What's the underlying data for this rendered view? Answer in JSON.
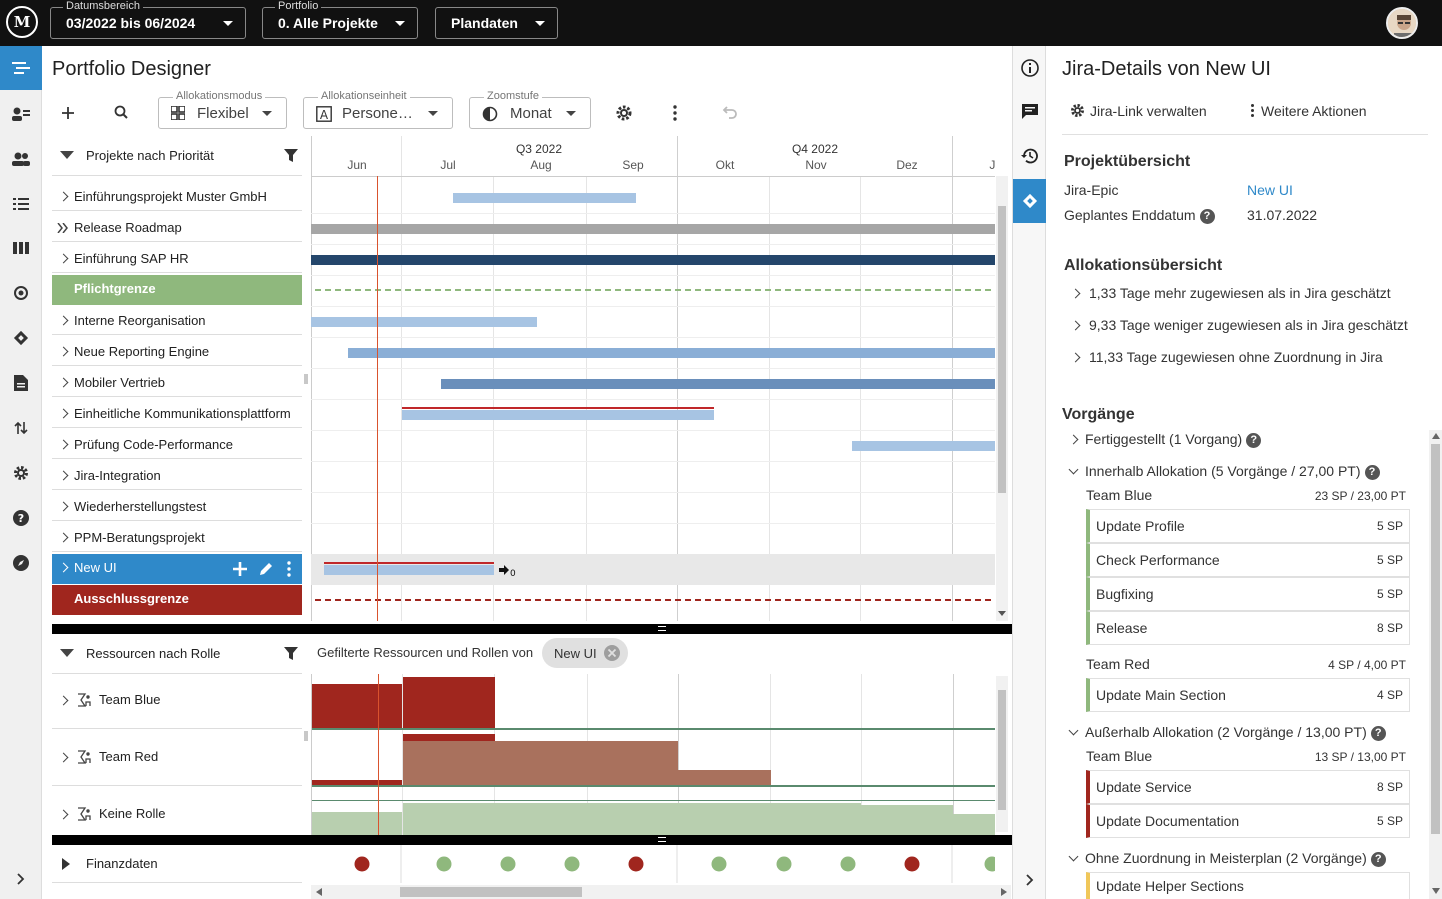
{
  "topbar": {
    "date_label": "Datumsbereich",
    "date_value": "03/2022 bis 06/2024",
    "portfolio_label": "Portfolio",
    "portfolio_value": "0. Alle Projekte",
    "plan_value": "Plandaten"
  },
  "page": {
    "title": "Portfolio Designer"
  },
  "toolbar": {
    "mode_label": "Allokationsmodus",
    "mode_value": "Flexibel",
    "unit_label": "Allokationseinheit",
    "unit_value": "Persone…",
    "zoom_label": "Zoomstufe",
    "zoom_value": "Monat"
  },
  "projects": {
    "header": "Projekte nach Priorität",
    "rows": [
      {
        "label": "Einführungsprojekt Muster GmbH"
      },
      {
        "label": "Release Roadmap"
      },
      {
        "label": "Einführung SAP HR"
      },
      {
        "label": "Pflichtgrenze"
      },
      {
        "label": "Interne Reorganisation"
      },
      {
        "label": "Neue Reporting Engine"
      },
      {
        "label": "Mobiler Vertrieb"
      },
      {
        "label": "Einheitliche Kommunikationsplattform"
      },
      {
        "label": "Prüfung Code-Performance"
      },
      {
        "label": "Jira-Integration"
      },
      {
        "label": "Wiederherstellungstest"
      },
      {
        "label": "PPM-Beratungsprojekt"
      },
      {
        "label": "New UI"
      },
      {
        "label": "Ausschlussgrenze"
      }
    ],
    "newui_counter": "0"
  },
  "timeline": {
    "quarters": [
      "Q3 2022",
      "Q4 2022"
    ],
    "months": [
      "Jun",
      "Jul",
      "Aug",
      "Sep",
      "Okt",
      "Nov",
      "Dez",
      "Jan"
    ]
  },
  "resources": {
    "header": "Ressourcen nach Rolle",
    "filter_text": "Gefilterte Ressourcen und Rollen von",
    "chip": "New UI",
    "rows": [
      {
        "label": "Team Blue"
      },
      {
        "label": "Team Red"
      },
      {
        "label": "Keine Rolle"
      }
    ],
    "finance_label": "Finanzdaten",
    "finance_status": [
      "red",
      "green",
      "green",
      "green",
      "red",
      "green",
      "green",
      "green",
      "red",
      "green"
    ]
  },
  "details": {
    "title": "Jira-Details von New UI",
    "link_action": "Jira-Link verwalten",
    "more_action": "Weitere Aktionen",
    "overview_heading": "Projektübersicht",
    "epic_label": "Jira-Epic",
    "epic_value": "New UI",
    "enddate_label": "Geplantes Enddatum",
    "enddate_value": "31.07.2022",
    "alloc_heading": "Allokationsübersicht",
    "alloc_items": [
      "1,33 Tage mehr zugewiesen als in Jira geschätzt",
      "9,33 Tage weniger zugewiesen als in Jira geschätzt",
      "11,33 Tage zugewiesen ohne Zuordnung in Jira"
    ],
    "issues_heading": "Vorgänge",
    "done_section": "Fertiggestellt (1 Vorgang)",
    "inside_section": "Innerhalb Allokation (5 Vorgänge / 27,00 PT)",
    "inside_blue": {
      "team": "Team Blue",
      "value": "23 SP / 23,00 PT",
      "tasks": [
        {
          "name": "Update Profile",
          "sp": "5 SP"
        },
        {
          "name": "Check Performance",
          "sp": "5 SP"
        },
        {
          "name": "Bugfixing",
          "sp": "5 SP"
        },
        {
          "name": "Release",
          "sp": "8 SP"
        }
      ]
    },
    "inside_red": {
      "team": "Team Red",
      "value": "4 SP / 4,00 PT",
      "tasks": [
        {
          "name": "Update Main Section",
          "sp": "4 SP"
        }
      ]
    },
    "outside_section": "Außerhalb Allokation (2 Vorgänge / 13,00 PT)",
    "outside_blue": {
      "team": "Team Blue",
      "value": "13 SP / 13,00 PT",
      "tasks": [
        {
          "name": "Update Service",
          "sp": "8 SP"
        },
        {
          "name": "Update Documentation",
          "sp": "5 SP"
        }
      ]
    },
    "unassigned_section": "Ohne Zuordnung in Meisterplan (2 Vorgänge)",
    "unassigned_tasks": [
      {
        "name": "Update Helper Sections"
      }
    ]
  },
  "colors": {
    "accent": "#2f89c9",
    "green_limit": "#8fb87d",
    "red_limit": "#a0261e",
    "over": "#a0261e"
  }
}
